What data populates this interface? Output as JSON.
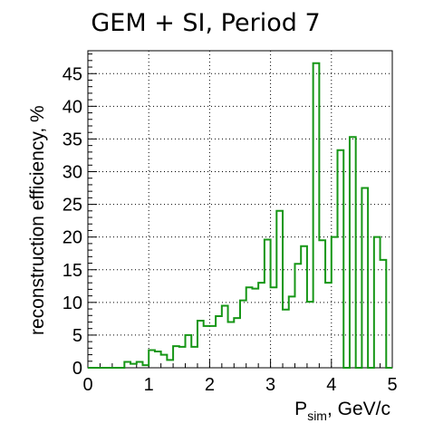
{
  "chart_data": {
    "type": "bar",
    "title": "GEM + SI, Period 7",
    "xlabel": {
      "main": "P",
      "sub": "sim",
      "suffix": ", GeV/c"
    },
    "ylabel": "reconstruction efficiency, %",
    "xlim": [
      0,
      5
    ],
    "ylim": [
      0,
      48.5
    ],
    "grid": true,
    "bin_width": 0.1,
    "x_ticks": [
      "0",
      "1",
      "2",
      "3",
      "4",
      "5"
    ],
    "y_ticks": [
      "0",
      "5",
      "10",
      "15",
      "20",
      "25",
      "30",
      "35",
      "40",
      "45"
    ],
    "bin_low_edges": [
      0.0,
      0.1,
      0.2,
      0.3,
      0.4,
      0.5,
      0.6,
      0.7,
      0.8,
      0.9,
      1.0,
      1.1,
      1.2,
      1.3,
      1.4,
      1.5,
      1.6,
      1.7,
      1.8,
      1.9,
      2.0,
      2.1,
      2.2,
      2.3,
      2.4,
      2.5,
      2.6,
      2.7,
      2.8,
      2.9,
      3.0,
      3.1,
      3.2,
      3.3,
      3.4,
      3.5,
      3.6,
      3.7,
      3.8,
      3.9,
      4.0,
      4.1,
      4.2,
      4.3,
      4.4,
      4.5,
      4.6,
      4.7,
      4.8,
      4.9
    ],
    "values": [
      0,
      0,
      0,
      0,
      0,
      0,
      0.9,
      0.6,
      0.9,
      0.4,
      2.7,
      2.5,
      2.0,
      1.2,
      3.3,
      3.2,
      5.0,
      3.2,
      7.2,
      6.4,
      6.4,
      7.9,
      9.5,
      7.0,
      7.6,
      10.3,
      12.3,
      12.1,
      13.0,
      19.6,
      12.3,
      24.0,
      8.9,
      10.9,
      15.9,
      18.6,
      10.1,
      46.6,
      19.5,
      13.0,
      20.0,
      33.3,
      0,
      35.3,
      0,
      27.5,
      0,
      20.0,
      16.5,
      0
    ],
    "colors": {
      "line": "#169616",
      "grid": "#000000",
      "axis": "#000000"
    }
  }
}
